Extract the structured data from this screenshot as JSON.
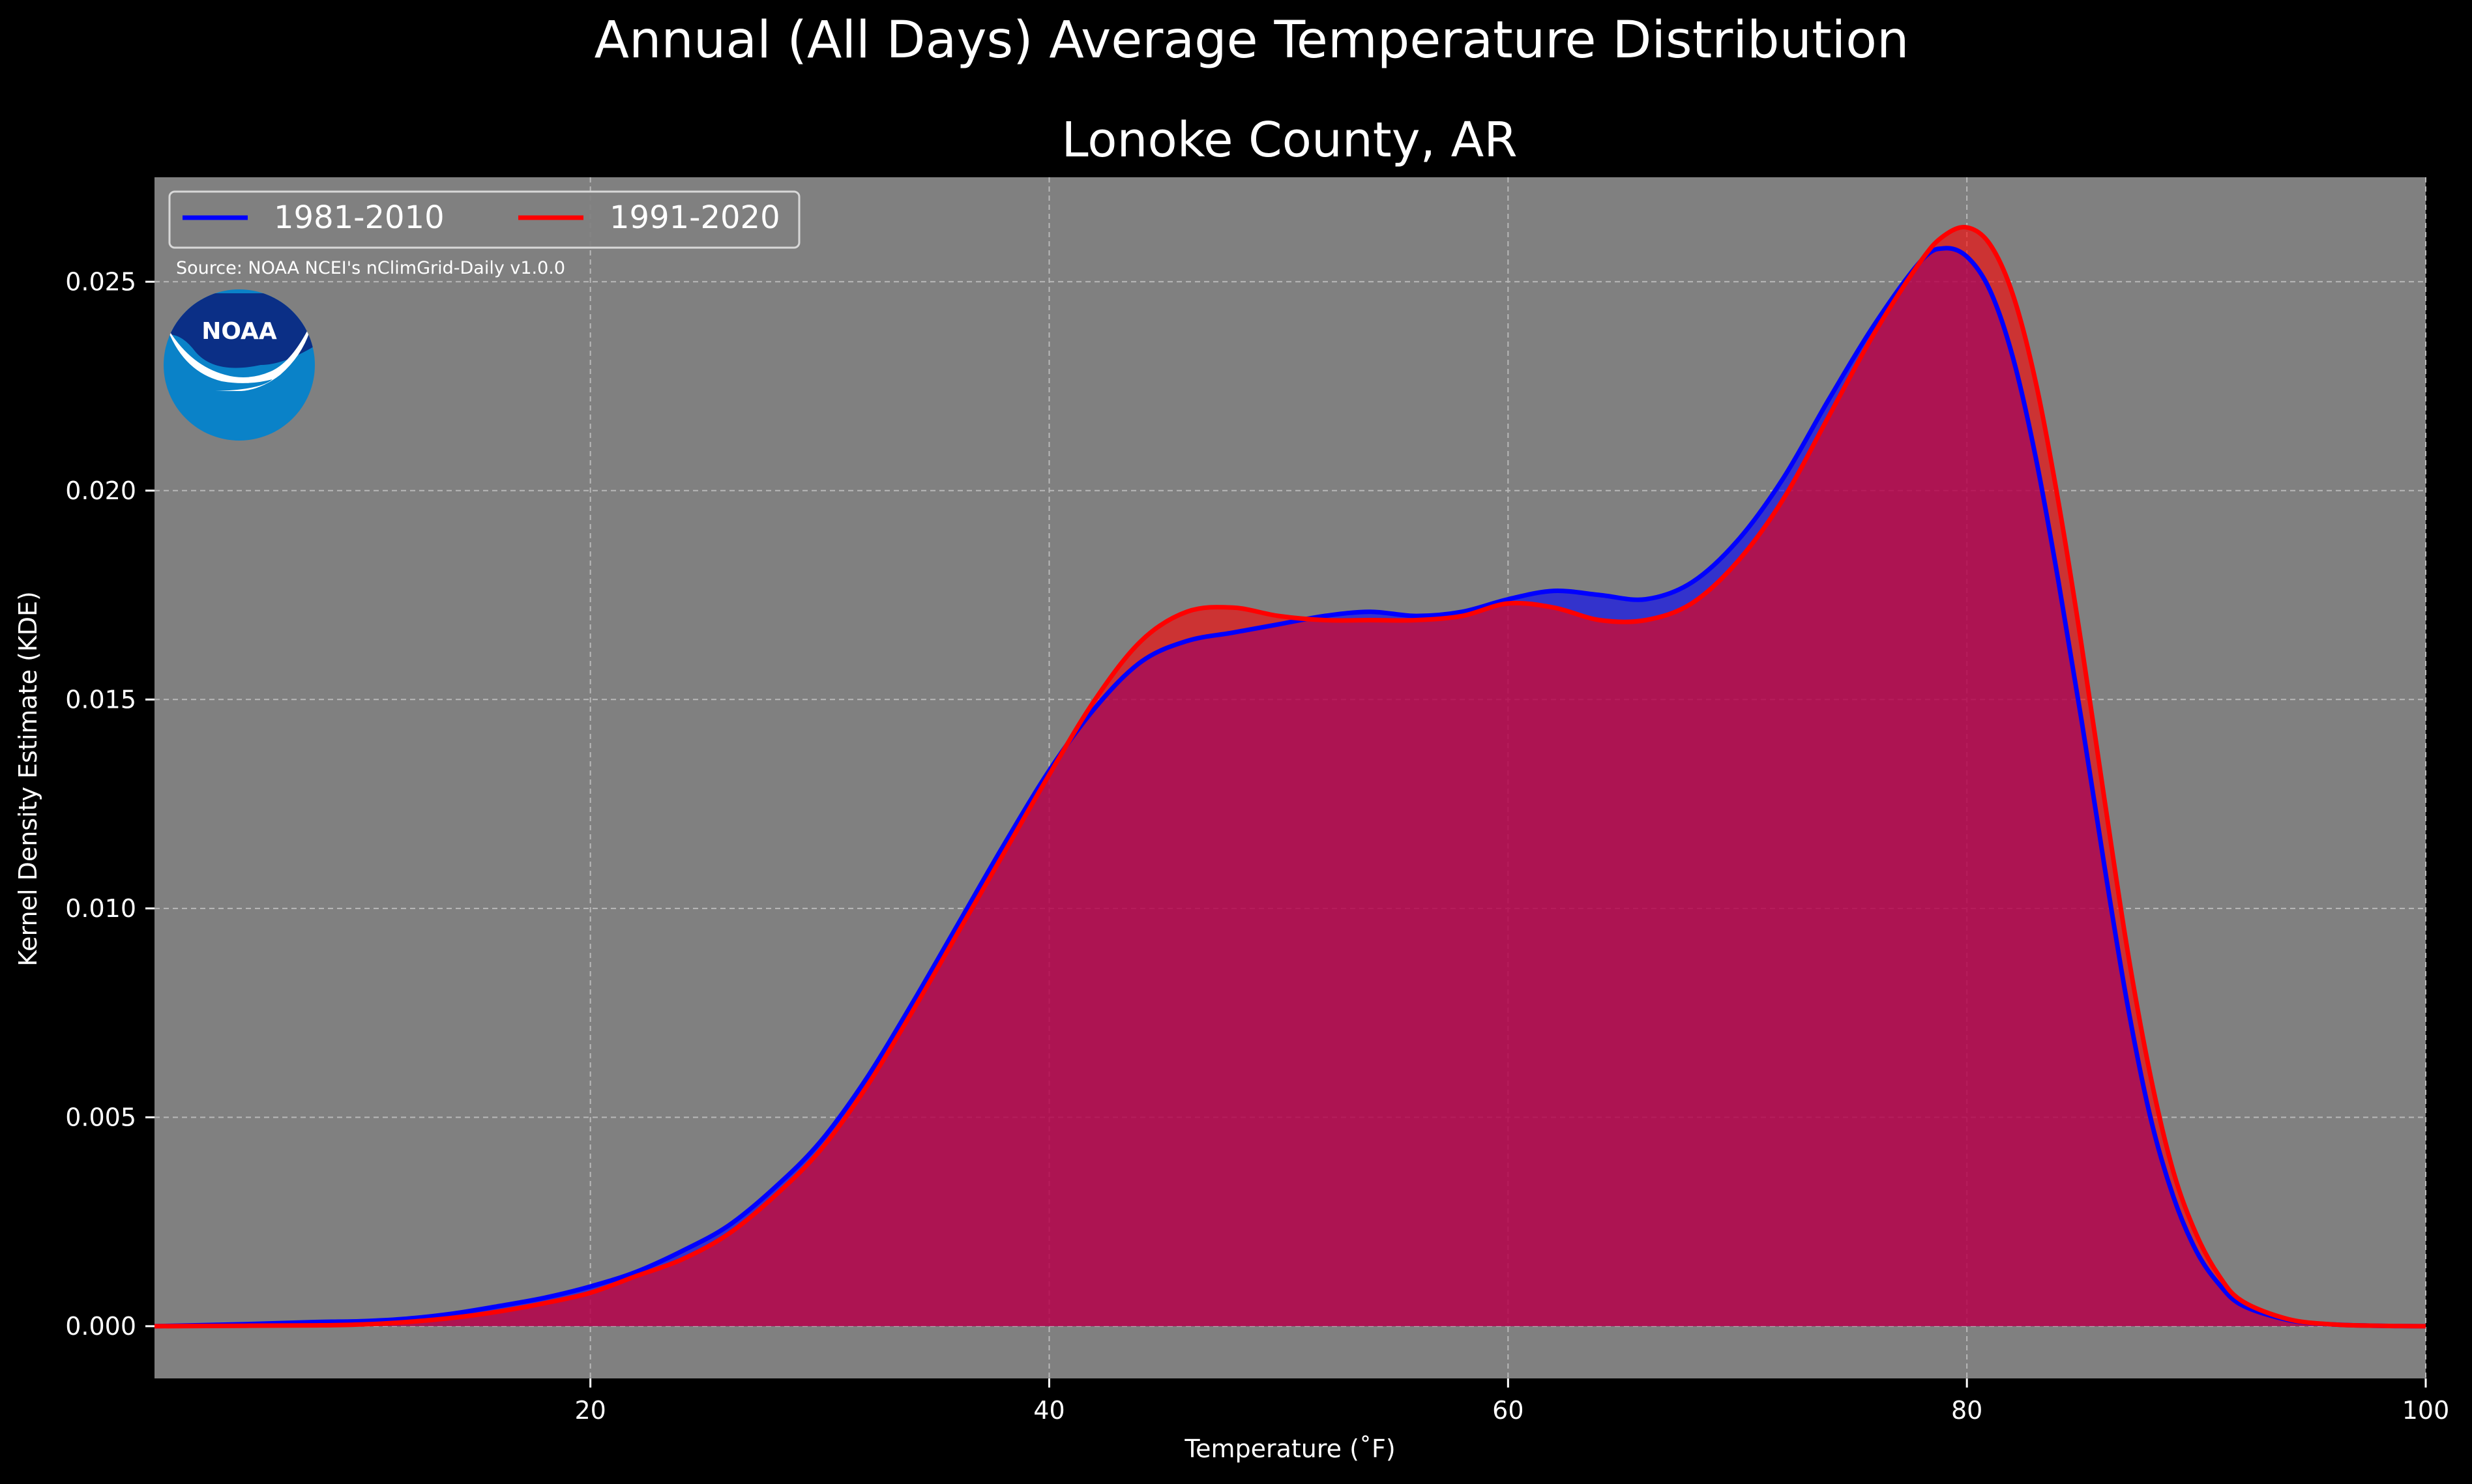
{
  "chart_data": {
    "type": "area",
    "suptitle": "Annual (All Days) Average Temperature Distribution",
    "title": "Lonoke County, AR",
    "xlabel": "Temperature ($^\\circ$F)",
    "xlabel_display": "Temperature (˚F)",
    "ylabel": "Kernel Density Estimate (KDE)",
    "xlim": [
      1,
      100
    ],
    "ylim": [
      -0.00125,
      0.0275
    ],
    "xticks": [
      20,
      40,
      60,
      80,
      100
    ],
    "xtick_labels": [
      "20",
      "40",
      "60",
      "80",
      "100"
    ],
    "yticks": [
      0.0,
      0.005,
      0.01,
      0.015,
      0.02,
      0.025
    ],
    "ytick_labels": [
      "0.000",
      "0.005",
      "0.010",
      "0.015",
      "0.020",
      "0.025"
    ],
    "grid": true,
    "legend_position": "top-left",
    "source_note": "Source: NOAA NCEI's nClimGrid-Daily v1.0.0",
    "logo_text": "NOAA",
    "colors": {
      "background": "#000000",
      "plot_bg": "#808080",
      "series_1981": "#0000ff",
      "series_1991": "#ff0000",
      "overlap_fill": "#9e1c5a"
    },
    "series": [
      {
        "name": "1981-2010",
        "color": "#0000ff",
        "x": [
          1,
          5,
          8,
          10,
          12,
          14,
          16,
          18,
          20,
          22,
          24,
          26,
          28,
          30,
          32,
          34,
          36,
          38,
          40,
          42,
          44,
          46,
          48,
          50,
          52,
          54,
          56,
          58,
          60,
          62,
          64,
          66,
          68,
          70,
          72,
          74,
          76,
          78,
          79,
          80,
          81,
          82,
          83,
          84,
          85,
          86,
          87,
          88,
          89,
          90,
          91,
          92,
          94,
          96,
          98,
          100
        ],
        "y": [
          0.0,
          5e-05,
          0.0001,
          0.00012,
          0.00018,
          0.0003,
          0.00048,
          0.00068,
          0.00095,
          0.0013,
          0.0018,
          0.0024,
          0.0033,
          0.0044,
          0.0059,
          0.0077,
          0.0096,
          0.0115,
          0.0133,
          0.0148,
          0.0159,
          0.0164,
          0.0166,
          0.0168,
          0.017,
          0.0171,
          0.017,
          0.0171,
          0.0174,
          0.0176,
          0.0175,
          0.0174,
          0.0178,
          0.0188,
          0.0203,
          0.0222,
          0.024,
          0.0255,
          0.0258,
          0.0256,
          0.0248,
          0.0232,
          0.0208,
          0.0178,
          0.0145,
          0.011,
          0.0077,
          0.005,
          0.0031,
          0.0018,
          0.001,
          0.0005,
          0.00015,
          4e-05,
          1e-05,
          0.0
        ]
      },
      {
        "name": "1991-2020",
        "color": "#ff0000",
        "x": [
          1,
          5,
          8,
          10,
          12,
          14,
          16,
          18,
          20,
          22,
          24,
          26,
          28,
          30,
          32,
          34,
          36,
          38,
          40,
          42,
          44,
          46,
          48,
          50,
          52,
          54,
          56,
          58,
          60,
          62,
          64,
          66,
          68,
          70,
          72,
          74,
          76,
          78,
          79,
          80,
          81,
          82,
          83,
          84,
          85,
          86,
          87,
          88,
          89,
          90,
          91,
          92,
          94,
          96,
          98,
          100
        ],
        "y": [
          0.0,
          1e-05,
          2e-05,
          4e-05,
          0.0001,
          0.0002,
          0.00035,
          0.00055,
          0.0008,
          0.0012,
          0.0016,
          0.0022,
          0.0031,
          0.0042,
          0.0057,
          0.0075,
          0.0094,
          0.0113,
          0.0132,
          0.015,
          0.0164,
          0.0171,
          0.0172,
          0.017,
          0.0169,
          0.0169,
          0.0169,
          0.017,
          0.0173,
          0.0172,
          0.0169,
          0.0169,
          0.0173,
          0.0183,
          0.0198,
          0.0218,
          0.0238,
          0.0255,
          0.0261,
          0.0263,
          0.0259,
          0.0247,
          0.0226,
          0.0197,
          0.0163,
          0.0126,
          0.009,
          0.006,
          0.0037,
          0.0022,
          0.0012,
          0.0006,
          0.00017,
          4e-05,
          1e-05,
          0.0
        ]
      }
    ]
  }
}
